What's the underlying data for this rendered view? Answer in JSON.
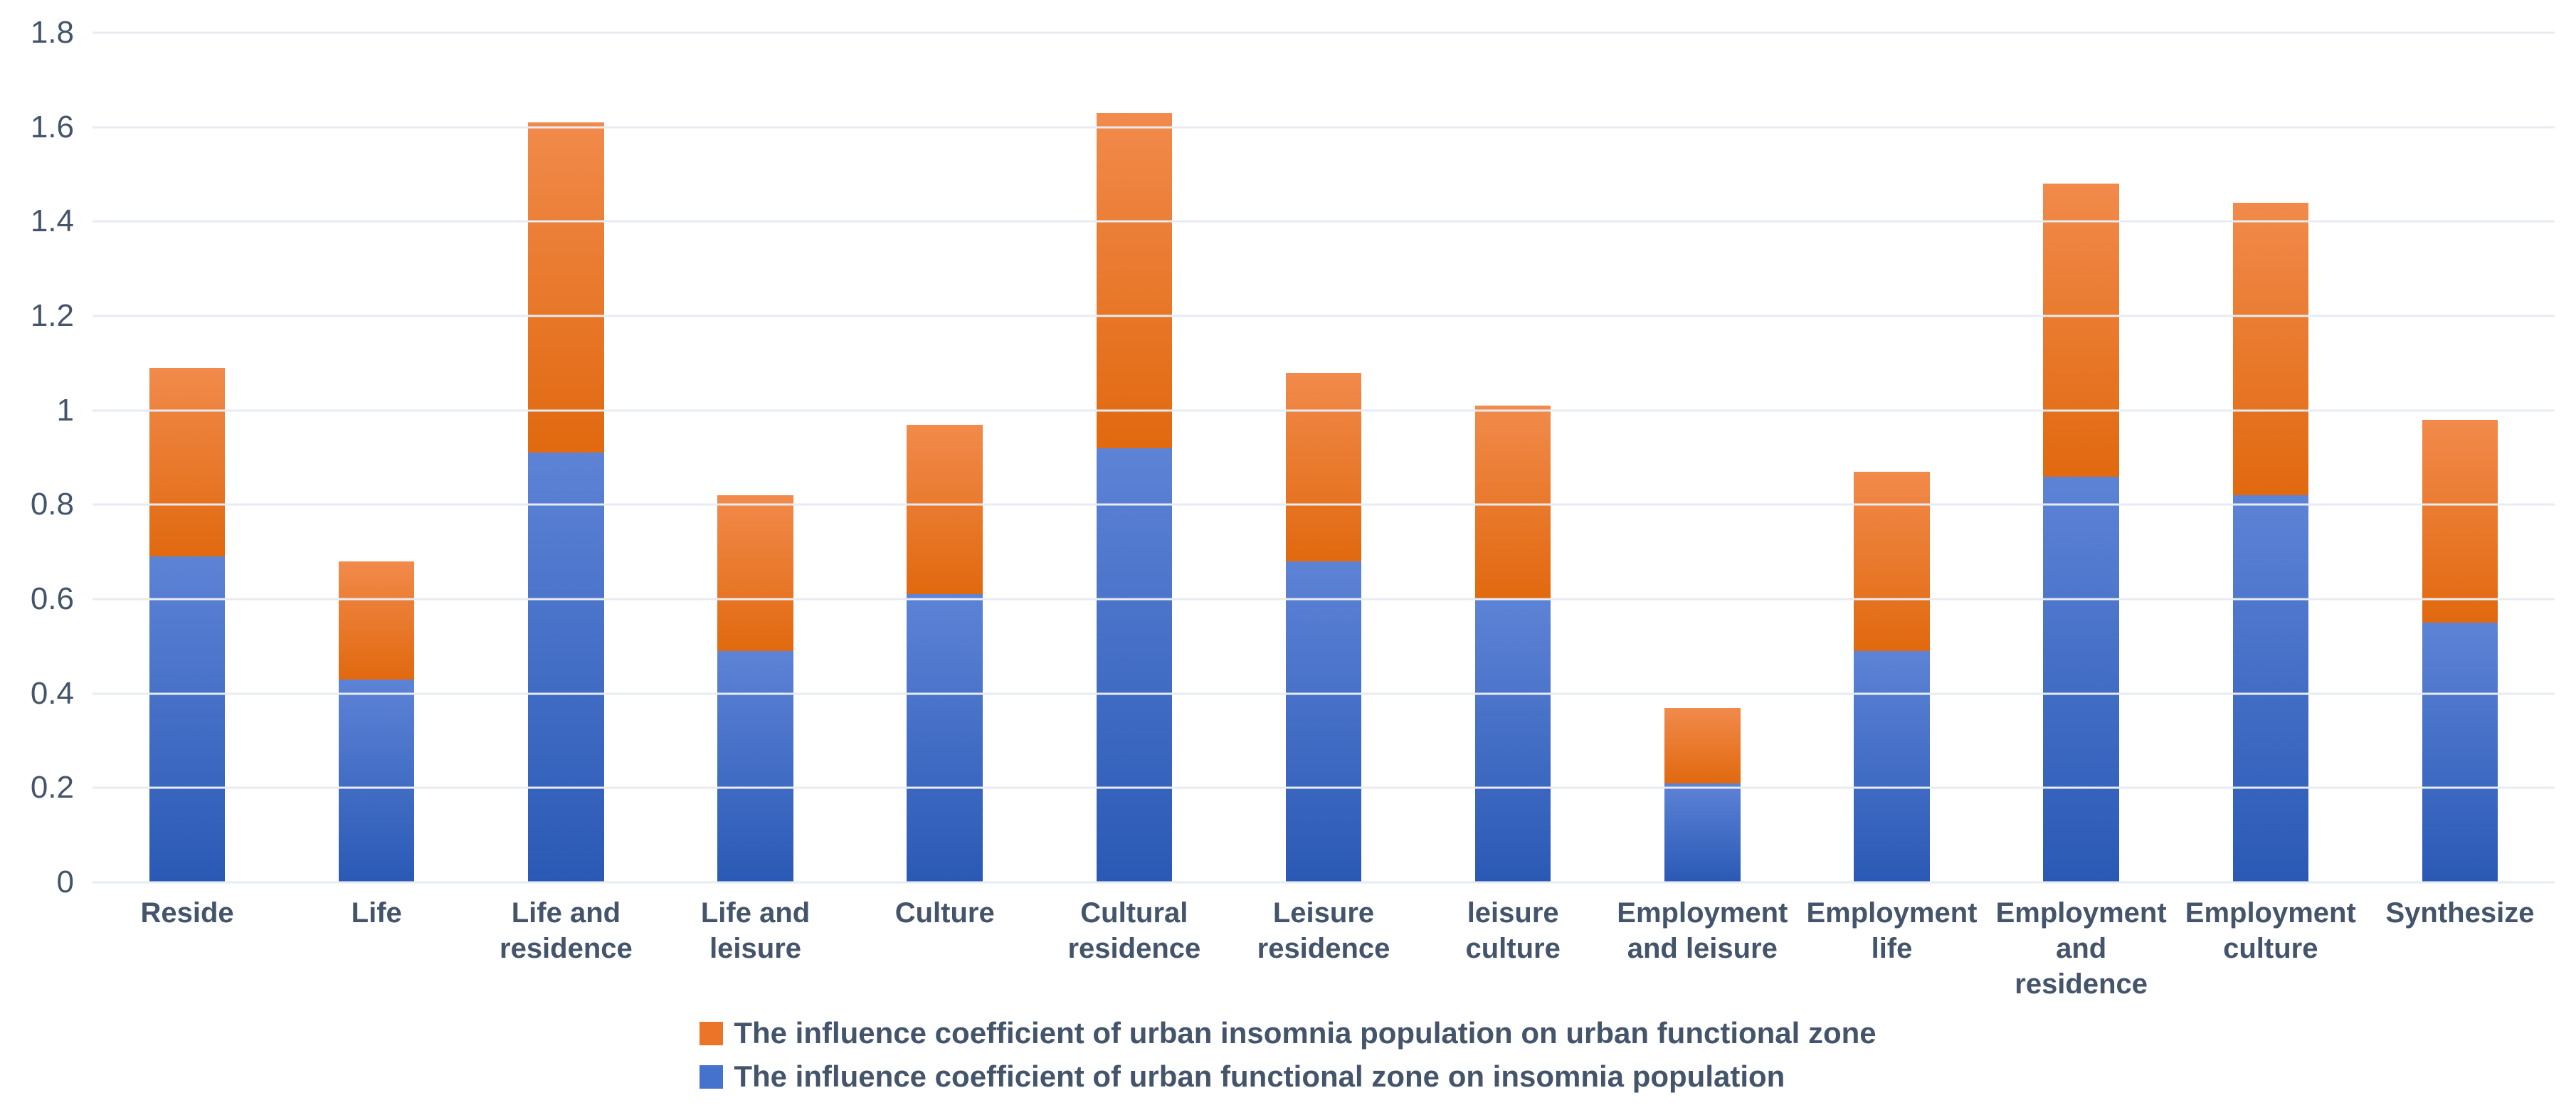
{
  "chart_data": {
    "type": "bar",
    "stacked": true,
    "title": "",
    "xlabel": "",
    "ylabel": "",
    "ylim": [
      0,
      1.8
    ],
    "ytick_step": 0.2,
    "yticks": [
      "1.8",
      "1.6",
      "1.4",
      "1.2",
      "1",
      "0.8",
      "0.6",
      "0.4",
      "0.2",
      "0"
    ],
    "grid": true,
    "legend_position": "bottom",
    "categories": [
      "Reside",
      "Life",
      "Life and residence",
      "Life and leisure",
      "Culture",
      "Cultural residence",
      "Leisure residence",
      "leisure culture",
      "Employment and leisure",
      "Employment life",
      "Employment and residence",
      "Employment culture",
      "Synthesize"
    ],
    "series": [
      {
        "name": "The influence coefficient of urban functional zone on insomnia population",
        "color": "#4472C4",
        "gradient_top": "#5D83D6",
        "gradient_bottom": "#2A59B5",
        "values": [
          0.69,
          0.43,
          0.91,
          0.49,
          0.61,
          0.92,
          0.68,
          0.6,
          0.21,
          0.49,
          0.86,
          0.82,
          0.55
        ]
      },
      {
        "name": "The influence coefficient of urban insomnia population on urban functional zone",
        "color": "#ED7D31",
        "gradient_top": "#F18A4B",
        "gradient_bottom": "#E1690F",
        "values": [
          0.4,
          0.25,
          0.7,
          0.33,
          0.36,
          0.71,
          0.4,
          0.41,
          0.16,
          0.38,
          0.62,
          0.62,
          0.43
        ]
      }
    ],
    "legend_order": [
      1,
      0
    ]
  },
  "colors": {
    "background": "#FFFFFF",
    "gridline": "#E7EBF2",
    "text": "#44546A",
    "legend_swatch_orange": "#EC7428",
    "legend_swatch_blue": "#4472CC"
  }
}
